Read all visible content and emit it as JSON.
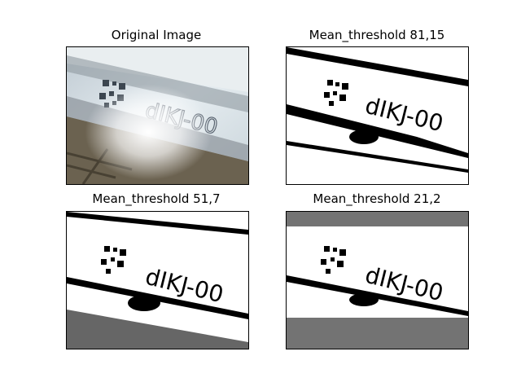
{
  "figure": {
    "panels": [
      {
        "title": "Original Image",
        "kind": "original"
      },
      {
        "title": "Mean_threshold 81,15",
        "kind": "threshold"
      },
      {
        "title": "Mean_threshold 51,7",
        "kind": "threshold"
      },
      {
        "title": "Mean_threshold 21,2",
        "kind": "threshold"
      }
    ],
    "engraved_text": "dIKJ-00"
  },
  "colors": {
    "ink": "#000000",
    "paper": "#ffffff",
    "photo_tint": "#d8e3ea"
  }
}
